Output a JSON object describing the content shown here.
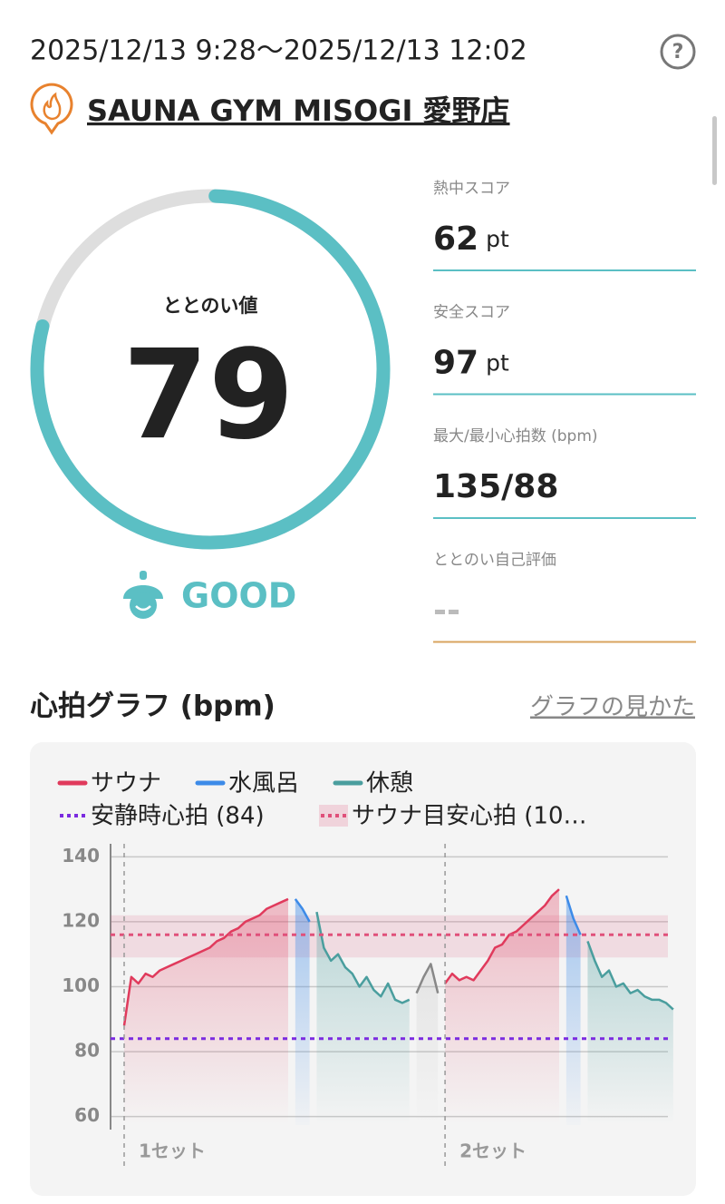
{
  "header": {
    "datetime": "2025/12/13 9:28～2025/12/13 12:02",
    "facility": "SAUNA GYM MISOGI 愛野店"
  },
  "gauge": {
    "label": "ととのい値",
    "value": 79,
    "status": "GOOD",
    "color": "#5bbfc4"
  },
  "stats": [
    {
      "label": "熱中スコア",
      "value": 62,
      "unit": "pt",
      "color": "#5bbfc4"
    },
    {
      "label": "安全スコア",
      "value": 97,
      "unit": "pt",
      "color": "#5bbfc4"
    },
    {
      "label": "最大/最小心拍数 (bpm)",
      "value": "135/88",
      "color": "#5bbfc4"
    },
    {
      "label": "ととのい自己評価",
      "value": "--",
      "color": "#d9a45f"
    }
  ],
  "chart_data": {
    "type": "line",
    "title": "心拍グラフ (bpm)",
    "link": "グラフの見かた",
    "ylim": [
      56,
      144
    ],
    "yticks": [
      60,
      80,
      100,
      120,
      140
    ],
    "grid": true,
    "set_labels": [
      "1セット",
      "2セット"
    ],
    "series": [
      {
        "name": "サウナ",
        "color": "#e03a5c",
        "values": [
          88,
          103,
          101,
          104,
          103,
          105,
          106,
          107,
          108,
          109,
          110,
          111,
          112,
          114,
          115,
          117,
          118,
          120,
          121,
          122,
          124,
          125,
          126,
          127,
          null,
          null,
          null,
          null,
          null,
          null,
          null,
          null,
          null,
          null,
          null,
          null,
          null,
          null,
          null,
          null,
          null,
          null,
          null,
          null,
          null,
          101,
          104,
          102,
          103,
          102,
          105,
          108,
          112,
          113,
          116,
          117,
          119,
          121,
          123,
          125,
          128,
          130,
          null,
          null,
          null,
          null,
          null,
          null,
          null,
          null,
          null,
          null,
          null,
          null,
          null,
          null,
          null
        ]
      },
      {
        "name": "水風呂",
        "color": "#3d8be8",
        "values": [
          null,
          null,
          null,
          null,
          null,
          null,
          null,
          null,
          null,
          null,
          null,
          null,
          null,
          null,
          null,
          null,
          null,
          null,
          null,
          null,
          null,
          null,
          null,
          null,
          127,
          124,
          120,
          null,
          null,
          null,
          null,
          null,
          null,
          null,
          null,
          null,
          null,
          null,
          null,
          null,
          null,
          null,
          null,
          null,
          null,
          null,
          null,
          null,
          null,
          null,
          null,
          null,
          null,
          null,
          null,
          null,
          null,
          null,
          null,
          null,
          null,
          null,
          128,
          121,
          116,
          null,
          null,
          null,
          null,
          null,
          null,
          null,
          null,
          null,
          null,
          null,
          null,
          null
        ]
      },
      {
        "name": "休憩",
        "color": "#4a9e9e",
        "values": [
          null,
          null,
          null,
          null,
          null,
          null,
          null,
          null,
          null,
          null,
          null,
          null,
          null,
          null,
          null,
          null,
          null,
          null,
          null,
          null,
          null,
          null,
          null,
          null,
          null,
          null,
          null,
          123,
          112,
          108,
          110,
          106,
          104,
          100,
          103,
          99,
          97,
          101,
          96,
          95,
          96,
          null,
          null,
          null,
          null,
          null,
          null,
          null,
          null,
          null,
          null,
          null,
          null,
          null,
          null,
          null,
          null,
          null,
          null,
          null,
          null,
          null,
          null,
          null,
          null,
          114,
          108,
          103,
          105,
          100,
          101,
          98,
          99,
          97,
          96,
          96,
          95,
          93
        ]
      },
      {
        "color": "#888888",
        "values": [
          null,
          null,
          null,
          null,
          null,
          null,
          null,
          null,
          null,
          null,
          null,
          null,
          null,
          null,
          null,
          null,
          null,
          null,
          null,
          null,
          null,
          null,
          null,
          null,
          null,
          null,
          null,
          null,
          null,
          null,
          null,
          null,
          null,
          null,
          null,
          null,
          null,
          null,
          null,
          null,
          null,
          98,
          103,
          107,
          98,
          null,
          null,
          null,
          null,
          null,
          null,
          null,
          null,
          null,
          null,
          null,
          null,
          null,
          null,
          null,
          null,
          null,
          null,
          null,
          null,
          null,
          null,
          null,
          null,
          null,
          null,
          null,
          null,
          null,
          null,
          null,
          null,
          null
        ]
      }
    ],
    "reference_lines": [
      {
        "name": "安静時心拍 (84)",
        "color": "#7b2be0",
        "value": 84
      },
      {
        "name": "サウナ目安心拍 (10…",
        "color": "#e0507a",
        "value": 116,
        "band": [
          109,
          122
        ]
      }
    ]
  }
}
